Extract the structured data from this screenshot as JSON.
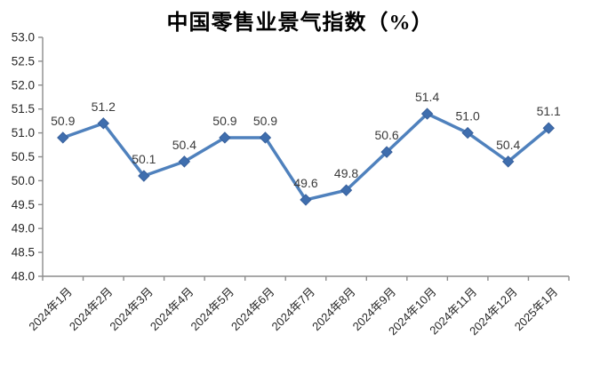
{
  "chart_data": {
    "type": "line",
    "title": "中国零售业景气指数（%）",
    "categories": [
      "2024年1月",
      "2024年2月",
      "2024年3月",
      "2024年4月",
      "2024年5月",
      "2024年6月",
      "2024年7月",
      "2024年8月",
      "2024年9月",
      "2024年10月",
      "2024年11月",
      "2024年12月",
      "2025年1月"
    ],
    "values": [
      50.9,
      51.2,
      50.1,
      50.4,
      50.9,
      50.9,
      49.6,
      49.8,
      50.6,
      51.4,
      51.0,
      50.4,
      51.1
    ],
    "data_labels": [
      "50.9",
      "51.2",
      "50.1",
      "50.4",
      "50.9",
      "50.9",
      "49.6",
      "49.8",
      "50.6",
      "51.4",
      "51.0",
      "50.4",
      "51.1"
    ],
    "xlabel": "",
    "ylabel": "",
    "ylim": [
      48.0,
      53.0
    ],
    "ytick_step": 0.5,
    "ytick_labels": [
      "48.0",
      "48.5",
      "49.0",
      "49.5",
      "50.0",
      "50.5",
      "51.0",
      "51.5",
      "52.0",
      "52.5",
      "53.0"
    ],
    "grid": false,
    "legend_position": "none",
    "colors": {
      "line": "#4f81bd",
      "marker_fill": "#3f6eae",
      "marker_border": "#38609c",
      "axis": "#8c8c8c",
      "tick_label": "#262626",
      "data_label": "#3a3a3a",
      "title": "#000000",
      "background": "#ffffff"
    }
  }
}
